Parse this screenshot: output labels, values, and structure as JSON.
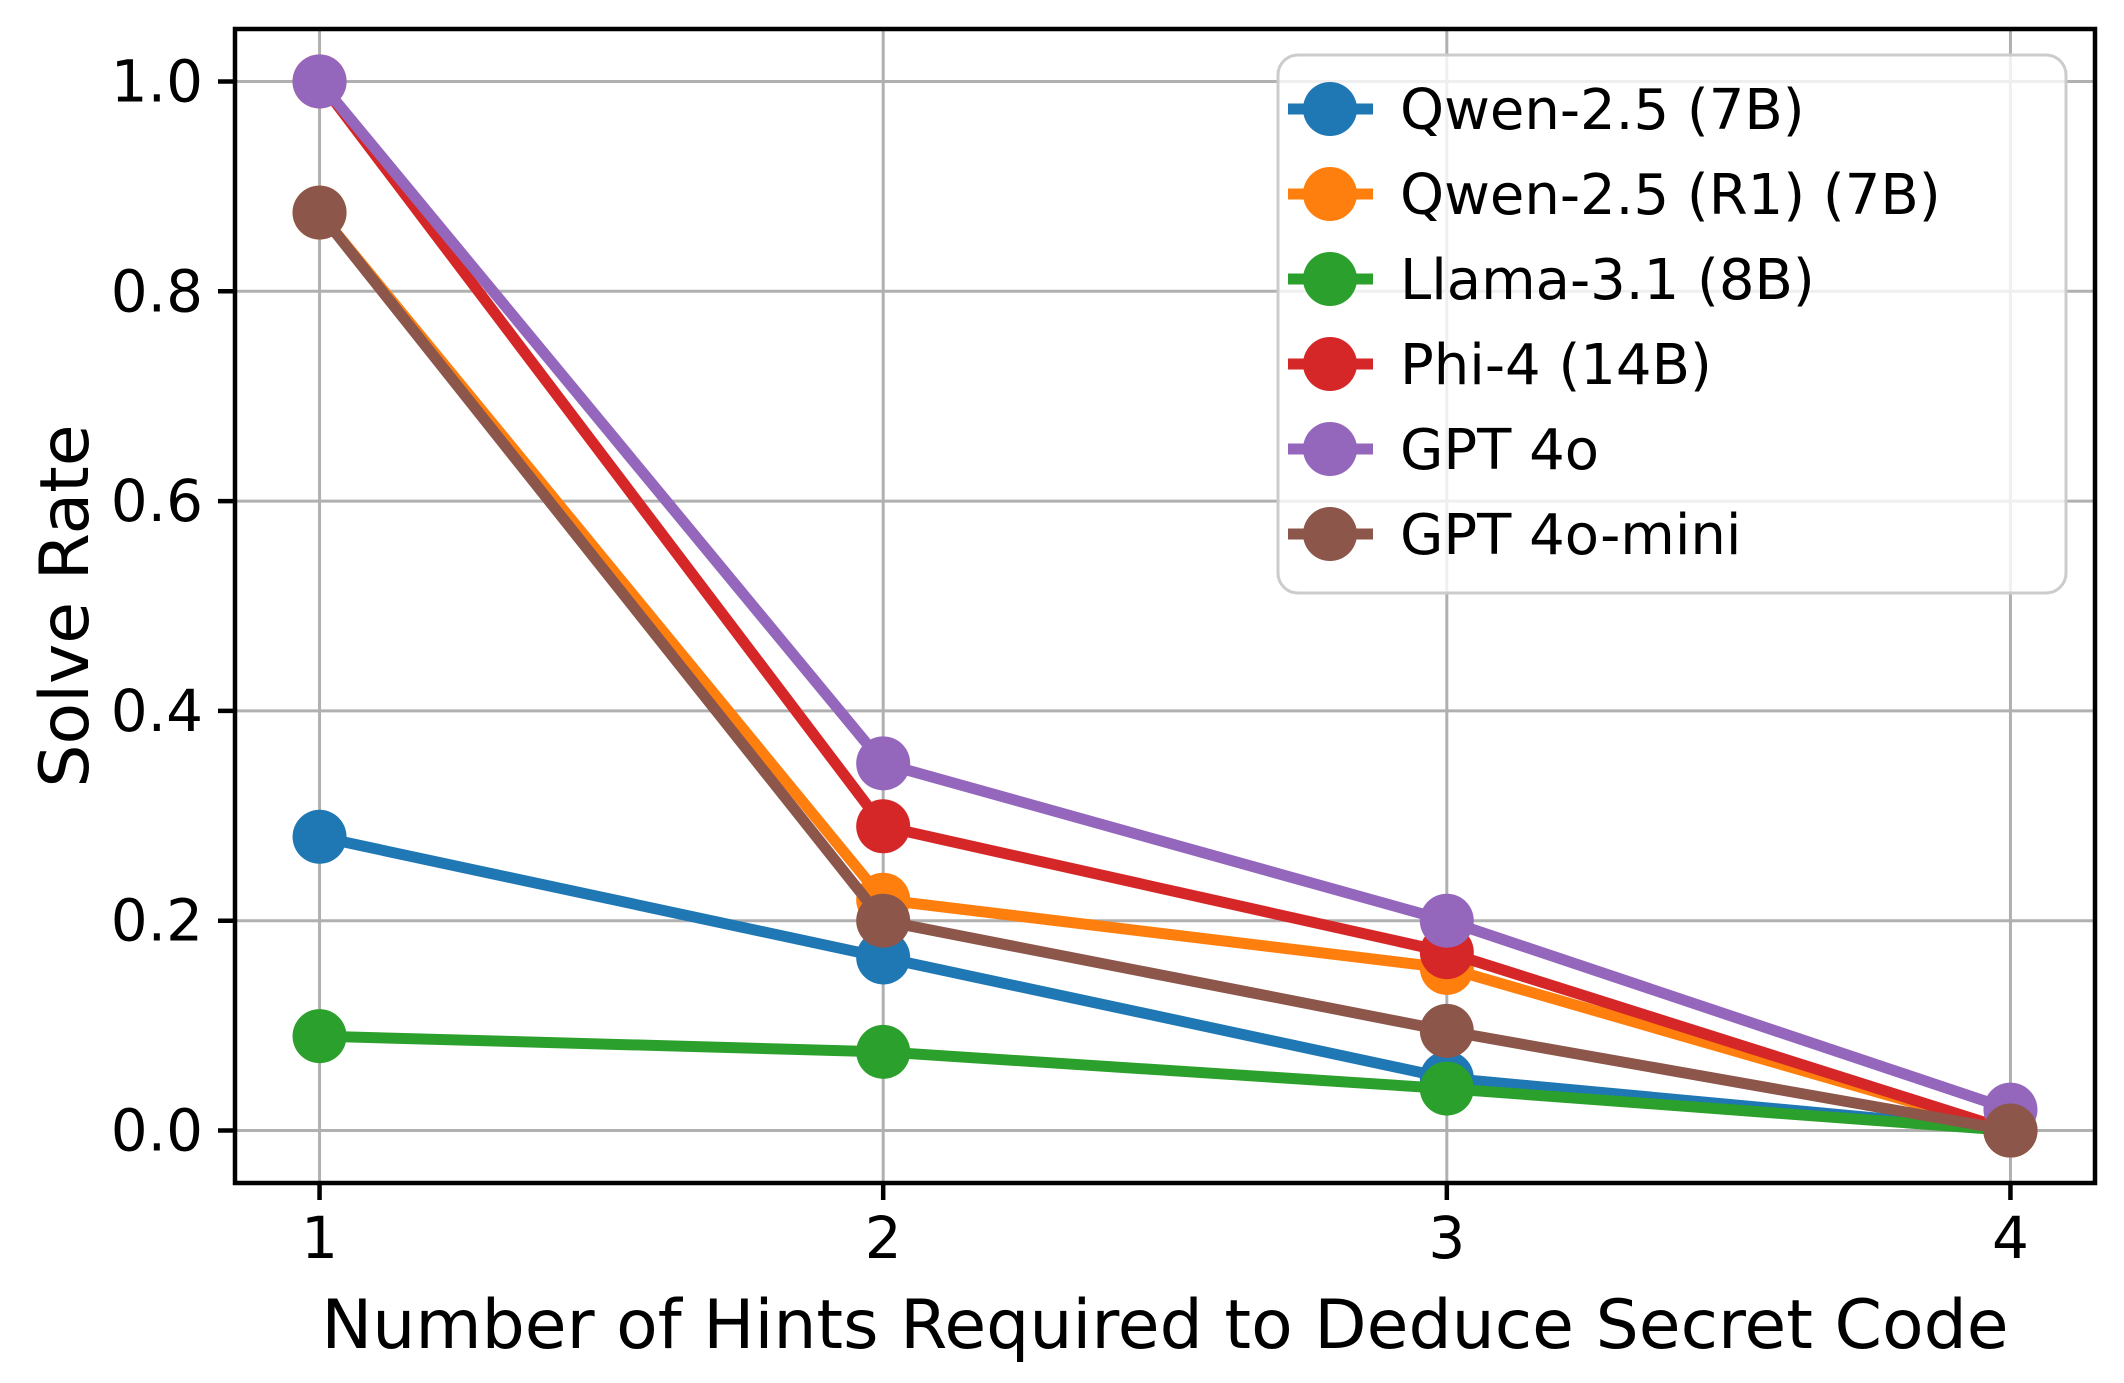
{
  "figure": {
    "background": "#ffffff"
  },
  "chart_data": {
    "type": "line",
    "title": "",
    "xlabel": "Number of Hints Required to Deduce Secret Code",
    "ylabel": "Solve Rate",
    "x": [
      1,
      2,
      3,
      4
    ],
    "x_tick_labels": [
      "1",
      "2",
      "3",
      "4"
    ],
    "y_ticks": [
      0.0,
      0.2,
      0.4,
      0.6,
      0.8,
      1.0
    ],
    "y_tick_labels": [
      "0.0",
      "0.2",
      "0.4",
      "0.6",
      "0.8",
      "1.0"
    ],
    "xlim": [
      0.85,
      4.15
    ],
    "ylim": [
      -0.05,
      1.05
    ],
    "grid": true,
    "grid_color": "#b0b0b0",
    "axis_color": "#000000",
    "legend_position": "upper right",
    "legend_border_color": "#cccccc",
    "legend_background": "rgba(255,255,255,0.8)",
    "series": [
      {
        "name": "Qwen-2.5 (7B)",
        "color": "#1f77b4",
        "values": [
          0.28,
          0.165,
          0.05,
          0.0
        ]
      },
      {
        "name": "Qwen-2.5 (R1) (7B)",
        "color": "#ff7f0e",
        "values": [
          0.875,
          0.22,
          0.155,
          0.0
        ]
      },
      {
        "name": "Llama-3.1 (8B)",
        "color": "#2ca02c",
        "values": [
          0.09,
          0.075,
          0.04,
          0.0
        ]
      },
      {
        "name": "Phi-4 (14B)",
        "color": "#d62728",
        "values": [
          1.0,
          0.29,
          0.17,
          0.0
        ]
      },
      {
        "name": "GPT 4o",
        "color": "#9467bd",
        "values": [
          1.0,
          0.35,
          0.2,
          0.02
        ]
      },
      {
        "name": "GPT 4o-mini",
        "color": "#8c564b",
        "values": [
          0.875,
          0.2,
          0.095,
          0.0
        ]
      }
    ]
  }
}
